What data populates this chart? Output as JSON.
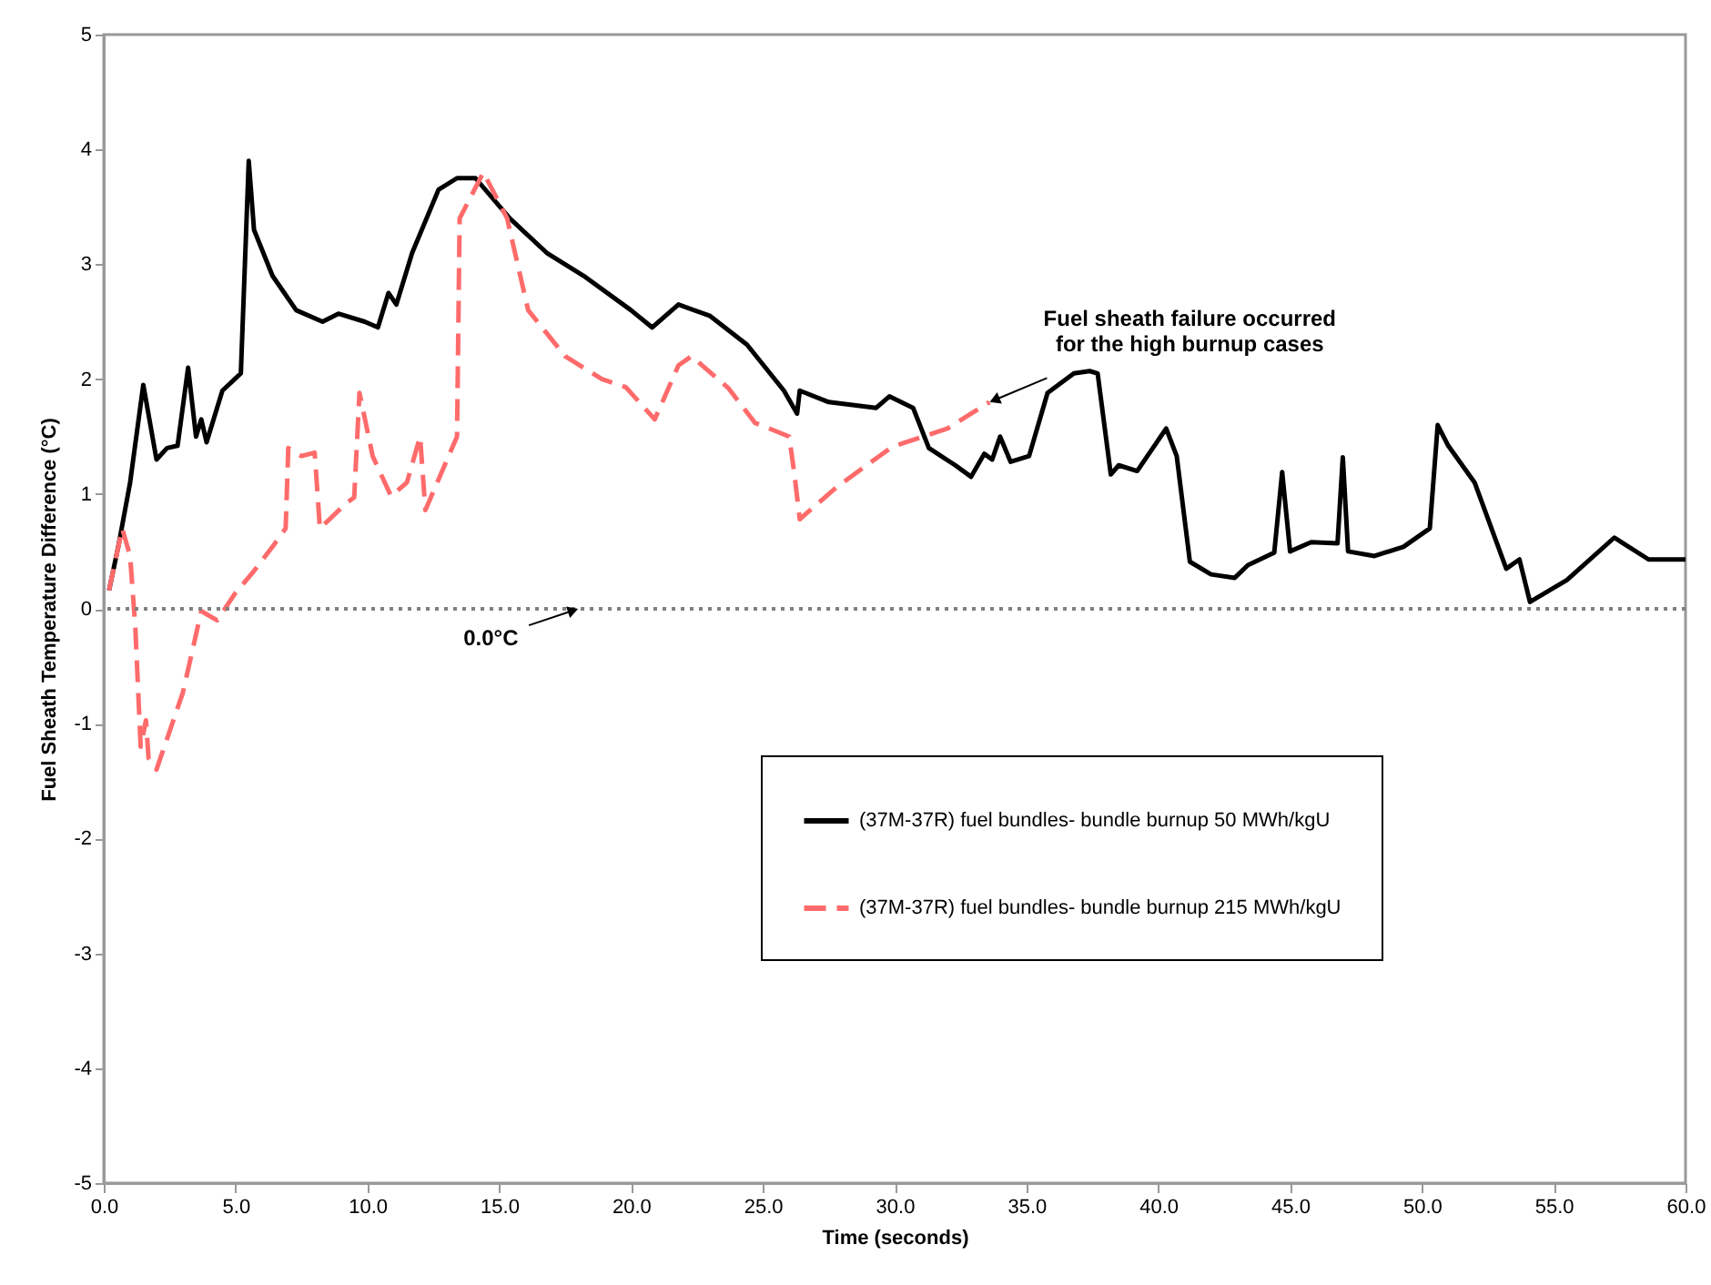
{
  "chart_data": {
    "type": "line",
    "xlabel": "Time (seconds)",
    "ylabel": "Fuel Sheath Temperature Difference (°C)",
    "xlim": [
      0,
      60
    ],
    "ylim": [
      -5,
      5
    ],
    "xticks": [
      {
        "value": 0,
        "label": "0.0"
      },
      {
        "value": 5,
        "label": "5.0"
      },
      {
        "value": 10,
        "label": "10.0"
      },
      {
        "value": 15,
        "label": "15.0"
      },
      {
        "value": 20,
        "label": "20.0"
      },
      {
        "value": 25,
        "label": "25.0"
      },
      {
        "value": 30,
        "label": "30.0"
      },
      {
        "value": 35,
        "label": "35.0"
      },
      {
        "value": 40,
        "label": "40.0"
      },
      {
        "value": 45,
        "label": "45.0"
      },
      {
        "value": 50,
        "label": "50.0"
      },
      {
        "value": 55,
        "label": "55.0"
      },
      {
        "value": 60,
        "label": "60.0"
      }
    ],
    "yticks": [
      -5,
      -4,
      -3,
      -2,
      -1,
      0,
      1,
      2,
      3,
      4,
      5
    ],
    "grid": false,
    "legend": "bottom right",
    "series": [
      {
        "name": "(37M-37R) fuel bundles- bundle burnup 50 MWh/kgU",
        "color": "#000000",
        "line_style": "solid",
        "x": [
          0.2,
          0.55,
          1.0,
          1.5,
          2.0,
          2.4,
          2.8,
          3.2,
          3.5,
          3.7,
          3.9,
          4.5,
          5.2,
          5.5,
          5.7,
          6.4,
          7.3,
          8.3,
          8.9,
          9.9,
          10.4,
          10.8,
          11.1,
          11.7,
          12.7,
          13.4,
          14.1,
          15.4,
          16.8,
          18.2,
          20.0,
          20.8,
          21.8,
          23.0,
          24.4,
          25.8,
          26.3,
          26.4,
          27.5,
          29.3,
          29.8,
          30.7,
          31.3,
          32.3,
          32.9,
          33.4,
          33.7,
          34.0,
          34.4,
          35.1,
          35.8,
          36.8,
          37.4,
          37.7,
          38.2,
          38.5,
          39.2,
          40.3,
          40.7,
          41.2,
          42.0,
          42.9,
          43.4,
          44.4,
          44.7,
          45.0,
          45.8,
          46.8,
          47.0,
          47.2,
          48.2,
          49.3,
          50.3,
          50.6,
          51.0,
          52.0,
          53.2,
          53.7,
          54.1,
          55.5,
          57.3,
          58.6,
          60.0
        ],
        "values": [
          0.16,
          0.54,
          1.1,
          1.95,
          1.3,
          1.4,
          1.42,
          2.1,
          1.5,
          1.65,
          1.45,
          1.9,
          2.05,
          3.9,
          3.3,
          2.9,
          2.6,
          2.5,
          2.57,
          2.5,
          2.45,
          2.75,
          2.65,
          3.1,
          3.65,
          3.75,
          3.75,
          3.4,
          3.1,
          2.9,
          2.6,
          2.45,
          2.65,
          2.55,
          2.3,
          1.9,
          1.7,
          1.9,
          1.8,
          1.75,
          1.85,
          1.75,
          1.4,
          1.25,
          1.15,
          1.35,
          1.3,
          1.5,
          1.28,
          1.33,
          1.88,
          2.05,
          2.07,
          2.05,
          1.17,
          1.25,
          1.2,
          1.57,
          1.33,
          0.41,
          0.3,
          0.27,
          0.38,
          0.49,
          1.19,
          0.5,
          0.58,
          0.57,
          1.32,
          0.5,
          0.46,
          0.54,
          0.7,
          1.6,
          1.42,
          1.1,
          0.35,
          0.43,
          0.06,
          0.25,
          0.62,
          0.43,
          0.43
        ]
      },
      {
        "name": "(37M-37R) fuel bundles- bundle burnup 215 MWh/kgU",
        "color": "#ff6b6b",
        "line_style": "dashed",
        "x": [
          0.2,
          0.7,
          1.0,
          1.2,
          1.4,
          1.6,
          1.7,
          2.0,
          3.0,
          3.7,
          4.3,
          5.0,
          5.7,
          6.4,
          6.9,
          7.0,
          7.5,
          8.0,
          8.2,
          9.2,
          9.5,
          9.7,
          10.2,
          10.9,
          11.5,
          12.0,
          12.2,
          13.4,
          13.5,
          14.4,
          15.3,
          16.1,
          17.5,
          18.9,
          19.8,
          20.9,
          21.8,
          22.3,
          23.7,
          24.7,
          26.0,
          26.2,
          26.4,
          27.8,
          29.9,
          32.0,
          33.6
        ],
        "values": [
          0.16,
          0.7,
          0.46,
          -0.17,
          -1.2,
          -0.97,
          -1.3,
          -1.4,
          -0.73,
          -0.02,
          -0.1,
          0.14,
          0.33,
          0.54,
          0.7,
          1.4,
          1.33,
          1.36,
          0.7,
          0.92,
          0.97,
          1.88,
          1.33,
          0.98,
          1.1,
          1.5,
          0.86,
          1.5,
          3.4,
          3.8,
          3.4,
          2.6,
          2.2,
          2.0,
          1.93,
          1.65,
          2.12,
          2.2,
          1.92,
          1.62,
          1.5,
          1.17,
          0.78,
          1.06,
          1.41,
          1.57,
          1.8
        ]
      }
    ],
    "ref_lines": [
      {
        "axis": "y",
        "value": 0,
        "color": "#808080",
        "line_style": "dotted"
      }
    ],
    "annotations": [
      {
        "text": "0.0°C",
        "x": 18,
        "y": 0
      },
      {
        "text": "Fuel sheath failure occurred\nfor the high burnup cases",
        "x": 33.6,
        "y": 1.8
      }
    ]
  }
}
